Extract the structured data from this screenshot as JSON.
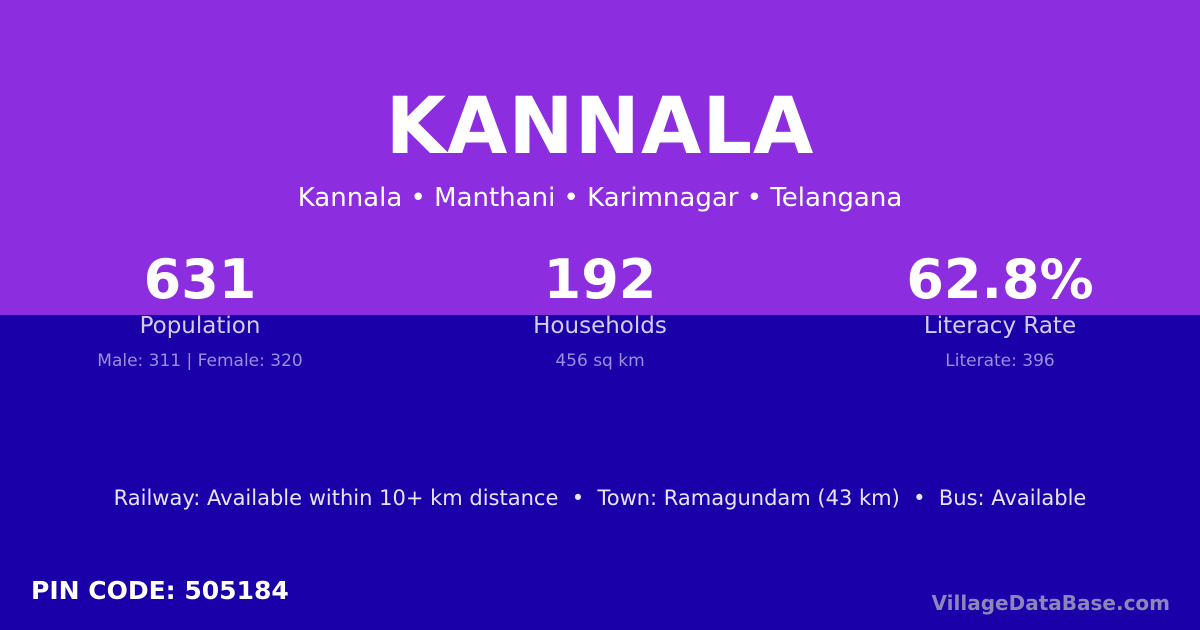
{
  "title": "KANNALA",
  "subtitle": "Kannala • Manthani • Karimnagar • Telangana",
  "stats": [
    {
      "value": "631",
      "label": "Population",
      "detail": "Male: 311 | Female: 320"
    },
    {
      "value": "192",
      "label": "Households",
      "detail": "456 sq km"
    },
    {
      "value": "62.8%",
      "label": "Literacy Rate",
      "detail": "Literate: 396"
    }
  ],
  "info": "Railway: Available within 10+ km distance  •  Town: Ramagundam (43 km)  •  Bus: Available",
  "pin": "PIN CODE: 505184",
  "brand": "VillageDataBase.com",
  "colors": {
    "top": "#8c2de0",
    "bottom": "#1a00a8"
  }
}
